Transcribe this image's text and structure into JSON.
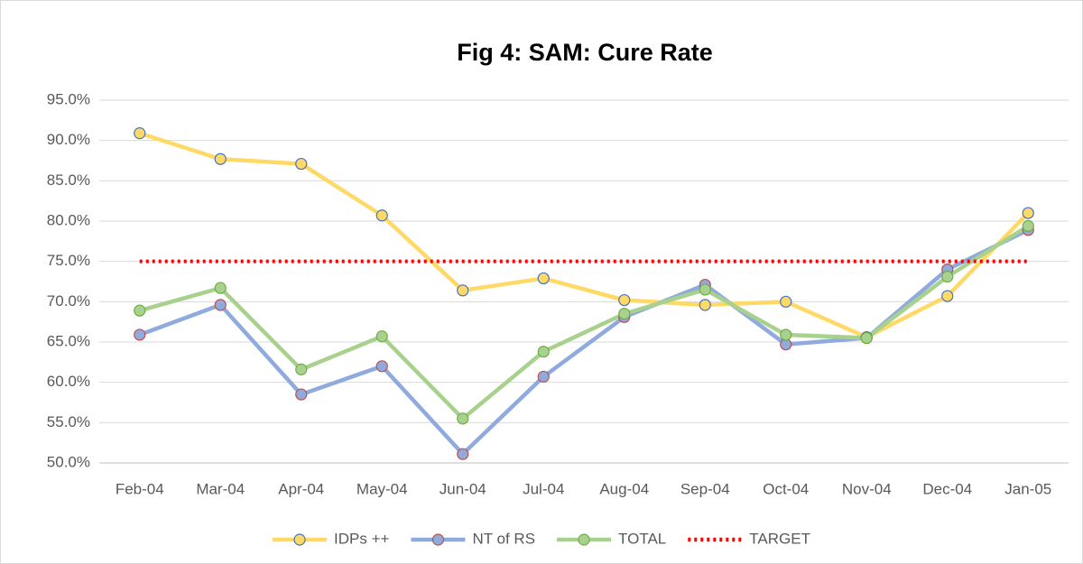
{
  "chart_data": {
    "type": "line",
    "title": "Fig 4: SAM: Cure Rate",
    "categories": [
      "Feb-04",
      "Mar-04",
      "Apr-04",
      "May-04",
      "Jun-04",
      "Jul-04",
      "Aug-04",
      "Sep-04",
      "Oct-04",
      "Nov-04",
      "Dec-04",
      "Jan-05"
    ],
    "series": [
      {
        "name": "IDPs ++",
        "color": "#ffd966",
        "marker_edge": "#4472c4",
        "marker": true,
        "dash": "solid",
        "values": [
          90.9,
          87.7,
          87.1,
          80.7,
          71.4,
          72.9,
          70.2,
          69.6,
          70.0,
          65.6,
          70.7,
          81.0
        ]
      },
      {
        "name": "NT of RS",
        "color": "#8faadc",
        "marker_edge": "#c0504d",
        "marker": true,
        "dash": "solid",
        "values": [
          65.9,
          69.6,
          58.5,
          62.0,
          51.1,
          60.7,
          68.1,
          72.1,
          64.7,
          65.5,
          74.0,
          78.9
        ]
      },
      {
        "name": "TOTAL",
        "color": "#a9d18e",
        "marker_edge": "#70ad47",
        "marker": true,
        "dash": "solid",
        "values": [
          68.9,
          71.7,
          61.6,
          65.7,
          55.5,
          63.8,
          68.5,
          71.5,
          65.9,
          65.5,
          73.1,
          79.4
        ]
      },
      {
        "name": "TARGET",
        "color": "#ff0000",
        "marker_edge": "#ff0000",
        "marker": false,
        "dash": "dotted",
        "values": [
          75,
          75,
          75,
          75,
          75,
          75,
          75,
          75,
          75,
          75,
          75,
          75
        ]
      }
    ],
    "ylim": [
      50,
      95
    ],
    "yticks": [
      {
        "value": 50,
        "label": "50.0%"
      },
      {
        "value": 55,
        "label": "55.0%"
      },
      {
        "value": 60,
        "label": "60.0%"
      },
      {
        "value": 65,
        "label": "65.0%"
      },
      {
        "value": 70,
        "label": "70.0%"
      },
      {
        "value": 75,
        "label": "75.0%"
      },
      {
        "value": 80,
        "label": "80.0%"
      },
      {
        "value": 85,
        "label": "85.0%"
      },
      {
        "value": 90,
        "label": "90.0%"
      },
      {
        "value": 95,
        "label": "95.0%"
      }
    ],
    "grid": true,
    "legend": "bottom"
  }
}
